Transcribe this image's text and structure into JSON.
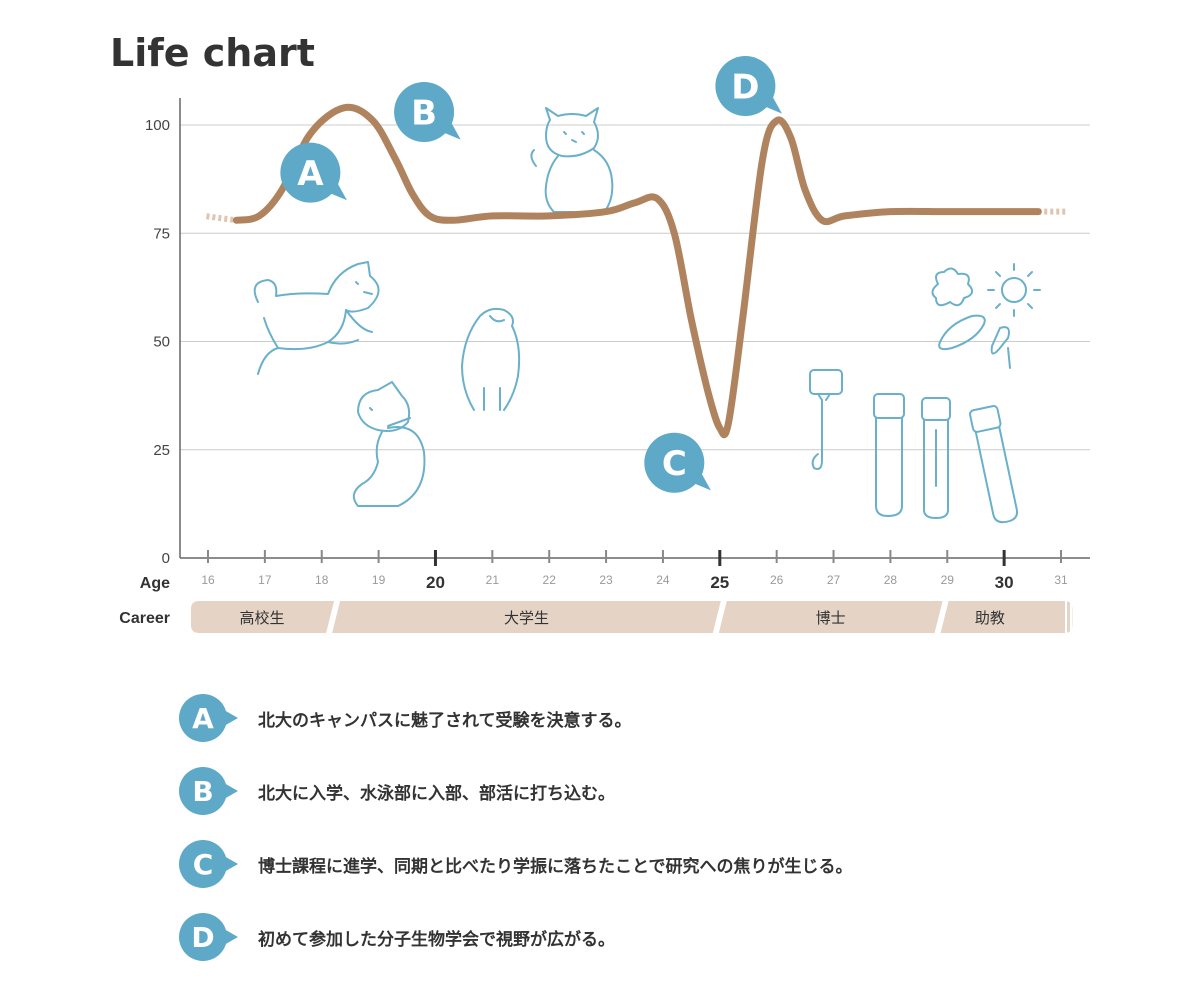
{
  "chart_data": {
    "type": "line",
    "title": "Life chart",
    "x_row_label": "Age",
    "x_ticks": [
      16,
      17,
      18,
      19,
      20,
      21,
      22,
      23,
      24,
      25,
      26,
      27,
      28,
      29,
      30,
      31
    ],
    "x_major_ticks": [
      20,
      25,
      30
    ],
    "xlim": [
      16,
      31
    ],
    "y_ticks": [
      0,
      25,
      50,
      75,
      100
    ],
    "ylim": [
      0,
      105
    ],
    "grid": true,
    "series": [
      {
        "color": "#b0835f",
        "x": [
          16.5,
          16.9,
          17.3,
          17.8,
          18.4,
          18.9,
          19.3,
          19.6,
          19.9,
          20.3,
          21.0,
          22.0,
          23.0,
          23.5,
          23.9,
          24.2,
          24.5,
          24.8,
          25.0,
          25.15,
          25.4,
          25.75,
          26.0,
          26.25,
          26.5,
          26.8,
          27.2,
          28.0,
          29.0,
          30.0,
          30.6
        ],
        "y": [
          78,
          79,
          85,
          98,
          104,
          101,
          92,
          84,
          79,
          78,
          79,
          79,
          80,
          82,
          83,
          75,
          55,
          38,
          30,
          31,
          55,
          92,
          101,
          97,
          85,
          78,
          79,
          80,
          80,
          80,
          80
        ]
      }
    ],
    "annotations": [
      {
        "id": "A",
        "x": 17.8,
        "y": 89,
        "color": "#5ea9c7",
        "text": "北大のキャンパスに魅了されて受験を決意する。"
      },
      {
        "id": "B",
        "x": 19.8,
        "y": 103,
        "color": "#5ea9c7",
        "text": "北大に入学、水泳部に入部、部活に打ち込む。"
      },
      {
        "id": "C",
        "x": 24.2,
        "y": 22,
        "color": "#5ea9c7",
        "text": "博士課程に進学、同期と比べたり学振に落ちたことで研究への焦りが生じる。"
      },
      {
        "id": "D",
        "x": 25.45,
        "y": 109,
        "color": "#5ea9c7",
        "text": "初めて参加した分子生物学会で視野が広がる。"
      }
    ],
    "career_row_label": "Career",
    "career": [
      {
        "label": "高校生",
        "start": 15.7,
        "end": 18.2
      },
      {
        "label": "大学生",
        "start": 18.2,
        "end": 25.0
      },
      {
        "label": "博士",
        "start": 25.0,
        "end": 28.9
      },
      {
        "label": "助教",
        "start": 28.9,
        "end": 31.2
      }
    ],
    "colors": {
      "line": "#b0835f",
      "line_fade": "#e0c4ae",
      "bubble": "#5ea9c7",
      "career_band": "#e5d4c6",
      "grid": "#cccccc",
      "axis": "#666666",
      "doodle": "#6bb0cb"
    }
  }
}
